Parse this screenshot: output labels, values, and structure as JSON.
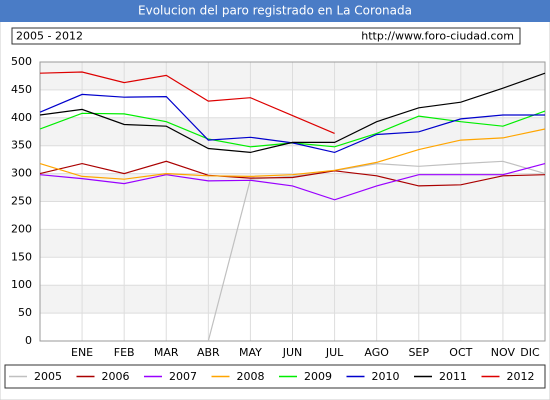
{
  "chart_data": {
    "type": "line",
    "title": "Evolucion del paro registrado en La Coronada",
    "subtitle": "2005 - 2012",
    "source": "http://www.foro-ciudad.com",
    "categories": [
      null,
      "ENE",
      "FEB",
      "MAR",
      "ABR",
      "MAY",
      "JUN",
      "JUL",
      "AGO",
      "SEP",
      "OCT",
      "NOV",
      "DIC"
    ],
    "ylim": [
      0,
      500
    ],
    "yticks": [
      0,
      50,
      100,
      150,
      200,
      250,
      300,
      350,
      400,
      450,
      500
    ],
    "grid": true,
    "legend": "bottom",
    "series": [
      {
        "name": "2005",
        "color": "#c0c0c0",
        "values": [
          null,
          null,
          null,
          null,
          0,
          290,
          295,
          305,
          318,
          313,
          318,
          322,
          300
        ]
      },
      {
        "name": "2006",
        "color": "#aa0000",
        "values": [
          300,
          318,
          300,
          322,
          297,
          292,
          293,
          305,
          296,
          278,
          280,
          296,
          298
        ]
      },
      {
        "name": "2007",
        "color": "#9900ff",
        "values": [
          298,
          291,
          282,
          298,
          287,
          288,
          278,
          253,
          278,
          298,
          298,
          298,
          318
        ]
      },
      {
        "name": "2008",
        "color": "#ffa500",
        "values": [
          318,
          295,
          290,
          300,
          296,
          295,
          298,
          306,
          320,
          343,
          360,
          364,
          380
        ]
      },
      {
        "name": "2009",
        "color": "#00ee00",
        "values": [
          380,
          408,
          407,
          393,
          362,
          348,
          355,
          348,
          372,
          403,
          393,
          385,
          412
        ]
      },
      {
        "name": "2010",
        "color": "#0000cc",
        "values": [
          410,
          442,
          437,
          438,
          360,
          365,
          355,
          338,
          370,
          375,
          398,
          405,
          405
        ]
      },
      {
        "name": "2011",
        "color": "#000000",
        "values": [
          405,
          415,
          388,
          385,
          345,
          338,
          356,
          356,
          393,
          418,
          428,
          453,
          480
        ]
      },
      {
        "name": "2012",
        "color": "#dd0000",
        "values": [
          480,
          482,
          463,
          476,
          430,
          436,
          404,
          372,
          null,
          null,
          null,
          null,
          null
        ]
      }
    ]
  }
}
